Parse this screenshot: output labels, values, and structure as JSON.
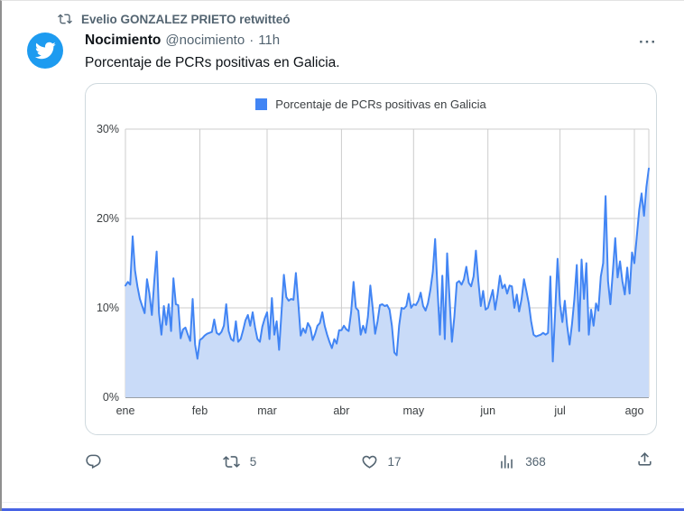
{
  "header": {
    "retweeted_by": "Evelio GONZALEZ PRIETO retwitteó"
  },
  "tweet": {
    "display_name": "Nocimiento",
    "handle": "@nocimiento",
    "separator": "·",
    "timestamp": "11h",
    "text": "Porcentaje de PCRs positivas en Galicia.",
    "more_label": "···"
  },
  "actions": {
    "retweet_count": "5",
    "like_count": "17",
    "view_count": "368"
  },
  "colors": {
    "brand_blue": "#1d9bf0",
    "text_primary": "#0f1419",
    "text_secondary": "#536471",
    "card_border": "#cfd9de",
    "bottom_bar": "#4763e4"
  },
  "chart_data": {
    "type": "area",
    "title": "Porcentaje de PCRs positivas en Galicia",
    "legend_position": "top",
    "grid": true,
    "ylim": [
      0,
      30
    ],
    "y_ticks": [
      0,
      10,
      20,
      30
    ],
    "y_tick_labels": [
      "0%",
      "10%",
      "20%",
      "30%"
    ],
    "x_tick_labels": [
      "ene",
      "feb",
      "mar",
      "abr",
      "may",
      "jun",
      "jul",
      "ago"
    ],
    "month_start_index": [
      0,
      31,
      59,
      90,
      120,
      151,
      181,
      212
    ],
    "line_color": "#4285f4",
    "fill_color": "#c9dbf8",
    "grid_color": "#cccccc",
    "baseline_color": "#9aa0a6",
    "axis_text_color": "#3c4043",
    "series": [
      {
        "name": "Porcentaje de PCRs positivas en Galicia",
        "values": [
          12.5,
          12.9,
          12.6,
          18.0,
          14.2,
          12.4,
          11.0,
          10.2,
          9.4,
          13.2,
          11.6,
          9.2,
          12.9,
          16.3,
          9.4,
          7.0,
          10.2,
          8.1,
          10.4,
          7.4,
          13.3,
          10.4,
          10.3,
          6.6,
          7.6,
          7.8,
          7.0,
          6.3,
          11.0,
          5.9,
          4.3,
          6.4,
          6.6,
          6.9,
          7.1,
          7.2,
          7.3,
          8.7,
          7.2,
          7.0,
          7.3,
          8.0,
          10.4,
          7.4,
          6.5,
          6.3,
          8.5,
          6.2,
          6.5,
          7.5,
          8.6,
          9.2,
          8.0,
          9.5,
          7.8,
          6.5,
          6.2,
          7.9,
          8.8,
          9.5,
          6.5,
          11.1,
          7.0,
          8.5,
          5.3,
          9.4,
          13.7,
          11.2,
          10.8,
          11.0,
          10.9,
          13.9,
          10.5,
          6.9,
          7.7,
          7.2,
          8.3,
          7.8,
          6.4,
          7.1,
          8.0,
          8.3,
          9.5,
          8.0,
          7.0,
          6.2,
          5.5,
          6.5,
          6.0,
          7.5,
          7.5,
          8.0,
          7.6,
          7.4,
          9.5,
          12.9,
          10.0,
          9.7,
          7.0,
          8.0,
          7.2,
          9.0,
          12.5,
          10.0,
          7.1,
          8.5,
          10.3,
          10.4,
          10.2,
          10.3,
          9.8,
          8.0,
          5.0,
          4.7,
          8.0,
          10.0,
          9.9,
          10.2,
          11.6,
          10.0,
          10.4,
          10.3,
          10.8,
          11.7,
          10.2,
          9.7,
          10.5,
          12.0,
          14.0,
          17.7,
          12.0,
          7.0,
          13.6,
          6.5,
          16.1,
          11.0,
          6.2,
          9.0,
          12.8,
          13.0,
          12.6,
          13.2,
          14.6,
          12.8,
          12.4,
          13.5,
          16.4,
          13.0,
          10.2,
          11.9,
          9.8,
          10.0,
          11.0,
          12.0,
          9.8,
          11.5,
          13.6,
          12.2,
          12.6,
          11.6,
          12.5,
          12.4,
          10.0,
          11.5,
          9.6,
          11.0,
          13.2,
          11.9,
          10.5,
          8.5,
          7.0,
          6.8,
          6.9,
          7.0,
          7.2,
          7.0,
          7.2,
          13.5,
          4.0,
          9.5,
          15.5,
          10.4,
          8.4,
          10.8,
          8.0,
          5.9,
          8.2,
          11.0,
          14.8,
          7.4,
          15.4,
          11.0,
          15.0,
          7.0,
          9.8,
          8.0,
          10.5,
          9.7,
          13.5,
          15.0,
          22.5,
          13.0,
          10.4,
          14.0,
          17.8,
          13.4,
          15.2,
          13.0,
          11.5,
          14.5,
          11.6,
          16.2,
          15.0,
          18.0,
          21.0,
          22.8,
          20.3,
          23.5,
          25.6
        ]
      }
    ]
  }
}
